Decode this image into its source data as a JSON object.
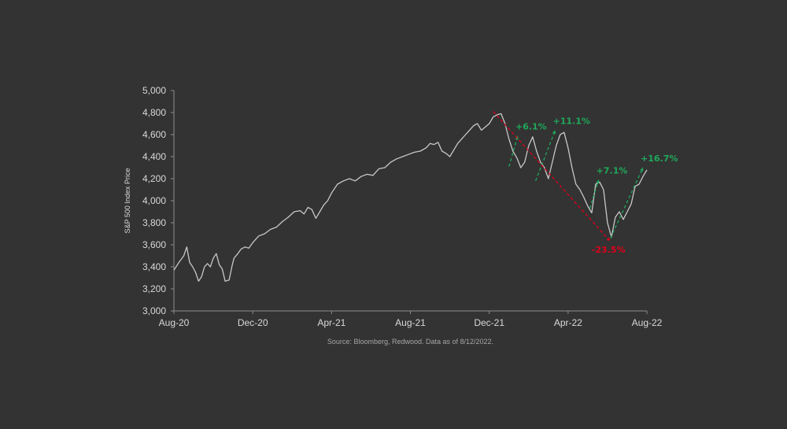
{
  "chart_data": {
    "type": "line",
    "ylabel": "S&P 500 Index Price",
    "xlabel": "",
    "ylim": [
      3000,
      5000
    ],
    "yticks": [
      "3,000",
      "3,200",
      "3,400",
      "3,600",
      "3,800",
      "4,000",
      "4,200",
      "4,400",
      "4,600",
      "4,800",
      "5,000"
    ],
    "ytick_values": [
      3000,
      3200,
      3400,
      3600,
      3800,
      4000,
      4200,
      4400,
      4600,
      4800,
      5000
    ],
    "xticks": [
      "Aug-20",
      "Dec-20",
      "Apr-21",
      "Aug-21",
      "Dec-21",
      "Apr-22",
      "Aug-22"
    ],
    "xtick_values": [
      0,
      4,
      8,
      12,
      16,
      20,
      24
    ],
    "xlim": [
      0,
      24
    ],
    "source": "Source: Bloomberg, Redwood. Data as of 8/12/2022.",
    "series": [
      {
        "name": "S&P 500",
        "color": "#c8c8c8",
        "x": [
          0,
          0.25,
          0.5,
          0.65,
          0.8,
          0.95,
          1.1,
          1.25,
          1.4,
          1.55,
          1.7,
          1.85,
          2.0,
          2.15,
          2.3,
          2.45,
          2.6,
          2.8,
          2.95,
          3.05,
          3.2,
          3.4,
          3.6,
          3.8,
          4.0,
          4.3,
          4.6,
          4.9,
          5.2,
          5.5,
          5.8,
          6.1,
          6.4,
          6.6,
          6.8,
          7.0,
          7.2,
          7.4,
          7.6,
          7.8,
          8.0,
          8.3,
          8.6,
          8.9,
          9.2,
          9.5,
          9.8,
          10.1,
          10.4,
          10.7,
          11.0,
          11.3,
          11.6,
          11.9,
          12.2,
          12.5,
          12.8,
          13.0,
          13.2,
          13.4,
          13.6,
          13.8,
          14.0,
          14.2,
          14.4,
          14.6,
          14.8,
          15.0,
          15.2,
          15.4,
          15.6,
          15.8,
          16.0,
          16.2,
          16.4,
          16.6,
          16.8,
          17.0,
          17.2,
          17.4,
          17.6,
          17.8,
          18.0,
          18.2,
          18.4,
          18.6,
          18.8,
          19.0,
          19.2,
          19.4,
          19.6,
          19.8,
          20.0,
          20.2,
          20.4,
          20.6,
          20.8,
          21.0,
          21.2,
          21.4,
          21.6,
          21.8,
          22.0,
          22.2,
          22.4,
          22.6,
          22.8,
          23.0,
          23.2,
          23.4,
          23.6,
          23.8,
          24.0
        ],
        "values": [
          3370,
          3440,
          3500,
          3580,
          3440,
          3400,
          3350,
          3270,
          3310,
          3400,
          3430,
          3400,
          3480,
          3520,
          3420,
          3380,
          3270,
          3280,
          3410,
          3480,
          3510,
          3560,
          3580,
          3570,
          3620,
          3680,
          3700,
          3740,
          3760,
          3810,
          3850,
          3900,
          3910,
          3880,
          3940,
          3920,
          3840,
          3900,
          3960,
          4000,
          4070,
          4150,
          4180,
          4200,
          4180,
          4220,
          4240,
          4230,
          4290,
          4300,
          4350,
          4380,
          4400,
          4420,
          4440,
          4450,
          4480,
          4520,
          4510,
          4530,
          4450,
          4430,
          4400,
          4460,
          4520,
          4560,
          4600,
          4640,
          4680,
          4700,
          4640,
          4670,
          4700,
          4760,
          4780,
          4790,
          4700,
          4560,
          4450,
          4390,
          4300,
          4350,
          4500,
          4580,
          4450,
          4350,
          4300,
          4200,
          4350,
          4500,
          4600,
          4620,
          4480,
          4300,
          4150,
          4100,
          4030,
          3950,
          3890,
          4150,
          4170,
          4100,
          3800,
          3670,
          3850,
          3900,
          3830,
          3900,
          3970,
          4130,
          4150,
          4220,
          4280
        ]
      }
    ],
    "annotations": [
      {
        "label": "+6.1%",
        "color": "#1fa95b",
        "style": "green",
        "from": [
          17.0,
          4310
        ],
        "to": [
          17.45,
          4590
        ]
      },
      {
        "label": "+11.1%",
        "color": "#1fa95b",
        "style": "green",
        "from": [
          18.35,
          4180
        ],
        "to": [
          19.35,
          4640
        ]
      },
      {
        "label": "+7.1%",
        "color": "#1fa95b",
        "style": "green",
        "from": [
          21.1,
          3930
        ],
        "to": [
          21.55,
          4190
        ]
      },
      {
        "label": "+16.7%",
        "color": "#1fa95b",
        "style": "green",
        "from": [
          22.15,
          3660
        ],
        "to": [
          23.8,
          4300
        ]
      },
      {
        "label": "-23.5%",
        "color": "#e0001b",
        "style": "red",
        "from": [
          16.2,
          4810
        ],
        "to": [
          22.05,
          3650
        ]
      }
    ]
  }
}
